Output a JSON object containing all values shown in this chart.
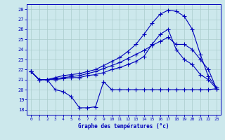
{
  "title": "Graphe des températures (°c)",
  "bg_color": "#cce8ec",
  "grid_color": "#aacccc",
  "line_color": "#0000bb",
  "xlim": [
    -0.5,
    23.5
  ],
  "ylim": [
    17.5,
    28.5
  ],
  "yticks": [
    18,
    19,
    20,
    21,
    22,
    23,
    24,
    25,
    26,
    27,
    28
  ],
  "xticks": [
    0,
    1,
    2,
    3,
    4,
    5,
    6,
    7,
    8,
    9,
    10,
    11,
    12,
    13,
    14,
    15,
    16,
    17,
    18,
    19,
    20,
    21,
    22,
    23
  ],
  "line1_x": [
    0,
    1,
    2,
    3,
    4,
    5,
    6,
    7,
    8,
    9,
    10,
    11,
    12,
    13,
    14,
    15,
    16,
    17,
    18,
    19,
    20,
    21,
    22,
    23
  ],
  "line1_y": [
    21.8,
    21.0,
    21.0,
    20.0,
    19.8,
    19.3,
    18.2,
    18.2,
    18.3,
    20.8,
    20.0,
    20.0,
    20.0,
    20.0,
    20.0,
    20.0,
    20.0,
    20.0,
    20.0,
    20.0,
    20.0,
    20.0,
    20.0,
    20.1
  ],
  "line2_x": [
    0,
    1,
    2,
    3,
    4,
    5,
    6,
    7,
    8,
    9,
    10,
    11,
    12,
    13,
    14,
    15,
    16,
    17,
    18,
    19,
    20,
    21,
    22,
    23
  ],
  "line2_y": [
    21.8,
    21.0,
    21.0,
    21.0,
    21.1,
    21.2,
    21.2,
    21.4,
    21.5,
    21.7,
    22.0,
    22.2,
    22.5,
    22.8,
    23.3,
    24.5,
    25.5,
    26.0,
    24.0,
    23.0,
    22.5,
    21.5,
    21.0,
    20.1
  ],
  "line3_x": [
    0,
    1,
    2,
    3,
    4,
    5,
    6,
    7,
    8,
    9,
    10,
    11,
    12,
    13,
    14,
    15,
    16,
    17,
    18,
    19,
    20,
    21,
    22,
    23
  ],
  "line3_y": [
    21.8,
    21.0,
    21.0,
    21.1,
    21.2,
    21.3,
    21.4,
    21.6,
    21.8,
    22.1,
    22.4,
    22.7,
    23.1,
    23.5,
    23.9,
    24.4,
    24.8,
    25.2,
    24.5,
    24.5,
    24.0,
    23.0,
    22.0,
    20.1
  ],
  "line4_x": [
    0,
    1,
    2,
    3,
    4,
    5,
    6,
    7,
    8,
    9,
    10,
    11,
    12,
    13,
    14,
    15,
    16,
    17,
    18,
    19,
    20,
    21,
    22,
    23
  ],
  "line4_y": [
    21.8,
    21.0,
    21.0,
    21.2,
    21.4,
    21.5,
    21.6,
    21.8,
    22.0,
    22.4,
    22.8,
    23.2,
    23.8,
    24.5,
    25.5,
    26.6,
    27.5,
    27.9,
    27.8,
    27.3,
    26.0,
    23.5,
    21.3,
    20.2
  ],
  "marker_size": 4,
  "lw": 0.8
}
